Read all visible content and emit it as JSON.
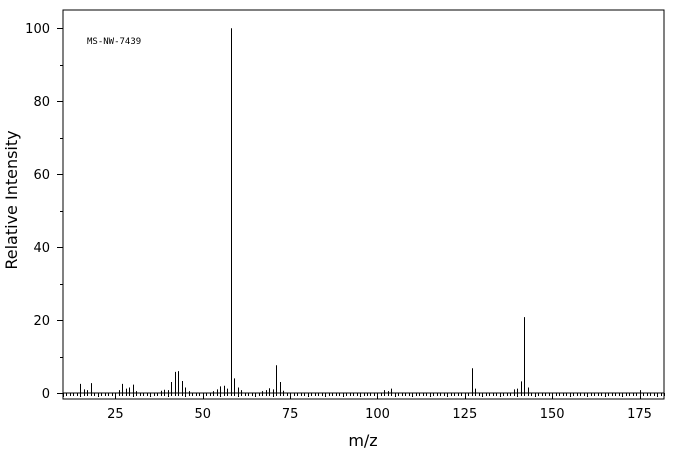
{
  "chart_data": {
    "type": "bar",
    "annotation": "MS-NW-7439",
    "xlabel": "m/z",
    "ylabel": "Relative Intensity",
    "xlim": [
      10,
      182
    ],
    "ylim": [
      0,
      105
    ],
    "x_ticks": [
      25,
      50,
      75,
      100,
      125,
      150,
      175
    ],
    "y_ticks": [
      0,
      20,
      40,
      60,
      80,
      100
    ],
    "grid": false,
    "legend": "none",
    "series": [
      {
        "x": [
          15,
          16,
          17,
          18,
          26,
          27,
          28,
          29,
          30,
          31,
          38,
          39,
          40,
          41,
          42,
          43,
          44,
          45,
          46,
          53,
          54,
          55,
          56,
          57,
          58,
          59,
          60,
          61,
          67,
          68,
          69,
          70,
          71,
          72,
          73,
          102,
          103,
          104,
          127,
          128,
          139,
          140,
          141,
          142,
          143,
          175
        ],
        "y": [
          2.5,
          1.0,
          0.8,
          2.7,
          0.8,
          2.5,
          1.2,
          1.5,
          2.3,
          0.5,
          0.6,
          0.9,
          0.8,
          3.0,
          5.8,
          6.0,
          3.3,
          1.5,
          0.5,
          0.5,
          1.0,
          1.8,
          2.0,
          1.2,
          100,
          4.0,
          1.5,
          0.8,
          0.5,
          0.8,
          1.3,
          1.0,
          7.6,
          3.0,
          0.6,
          0.8,
          0.5,
          1.2,
          6.8,
          1.2,
          1.0,
          1.2,
          3.2,
          20.8,
          1.5,
          0.8
        ]
      }
    ]
  }
}
